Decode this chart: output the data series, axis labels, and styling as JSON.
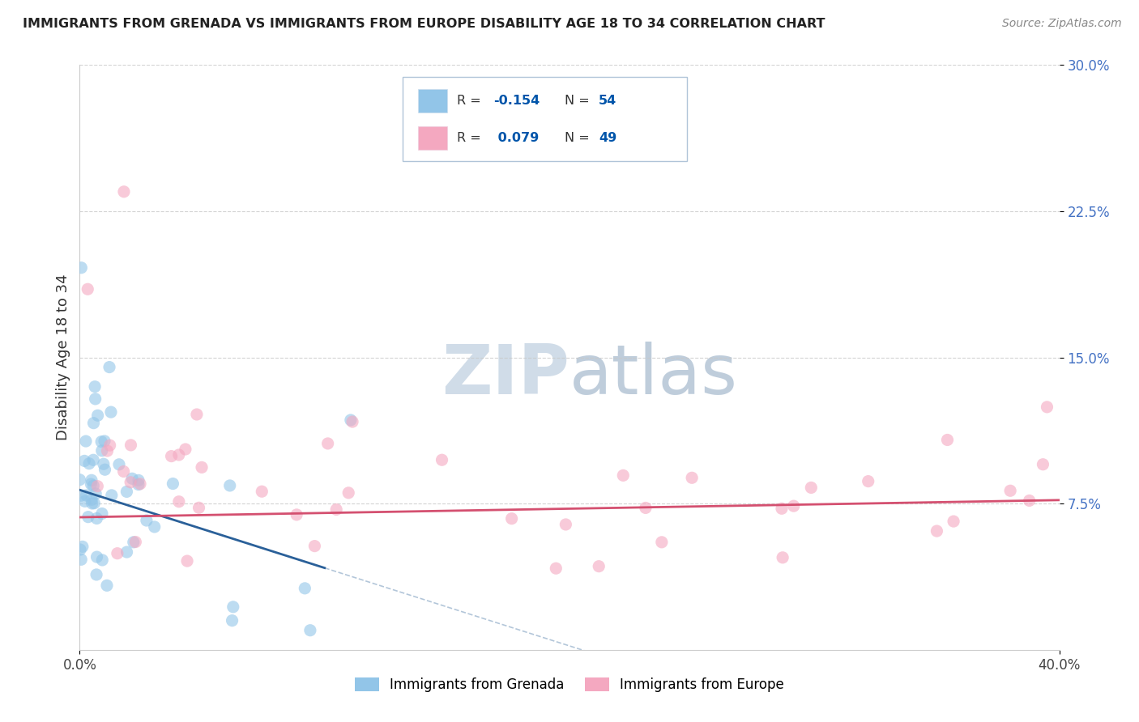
{
  "title": "IMMIGRANTS FROM GRENADA VS IMMIGRANTS FROM EUROPE DISABILITY AGE 18 TO 34 CORRELATION CHART",
  "source": "Source: ZipAtlas.com",
  "ylabel": "Disability Age 18 to 34",
  "series1_label": "Immigrants from Grenada",
  "series1_R": -0.154,
  "series1_N": 54,
  "series1_color": "#92c5e8",
  "series1_trend_color": "#2a6099",
  "series2_label": "Immigrants from Europe",
  "series2_R": 0.079,
  "series2_N": 49,
  "series2_color": "#f4a8c0",
  "series2_trend_color": "#d45070",
  "background_color": "#ffffff",
  "grid_color": "#c8c8c8",
  "xlim": [
    0.0,
    0.4
  ],
  "ylim": [
    0.0,
    0.3
  ],
  "watermark_color": "#d0dce8",
  "legend_R1_color": "#0055aa",
  "legend_R2_color": "#0055aa"
}
